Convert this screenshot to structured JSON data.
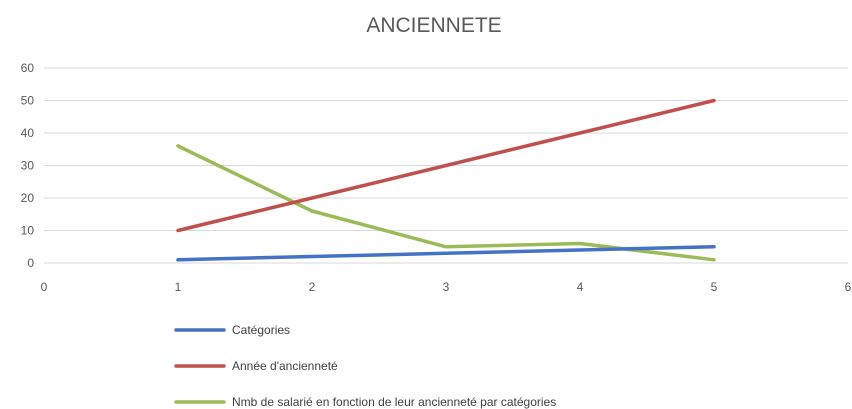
{
  "chart_data": {
    "type": "line",
    "title": "ANCIENNETE",
    "xlim": [
      0,
      6
    ],
    "ylim": [
      0,
      60
    ],
    "x_ticks": [
      0,
      1,
      2,
      3,
      4,
      5,
      6
    ],
    "y_ticks": [
      0,
      10,
      20,
      30,
      40,
      50,
      60
    ],
    "grid": true,
    "legend_position": "bottom",
    "series": [
      {
        "name": "Catégories",
        "color": "#4472c4",
        "x": [
          1,
          2,
          3,
          4,
          5
        ],
        "values": [
          1,
          2,
          3,
          4,
          5
        ]
      },
      {
        "name": "Année d'ancienneté",
        "color": "#c0504d",
        "x": [
          1,
          2,
          3,
          4,
          5
        ],
        "values": [
          10,
          20,
          30,
          40,
          50
        ]
      },
      {
        "name": "Nmb de salarié en fonction de leur ancienneté par catégories",
        "color": "#9bbb59",
        "x": [
          1,
          2,
          3,
          4,
          5
        ],
        "values": [
          36,
          16,
          5,
          6,
          1
        ]
      }
    ]
  }
}
